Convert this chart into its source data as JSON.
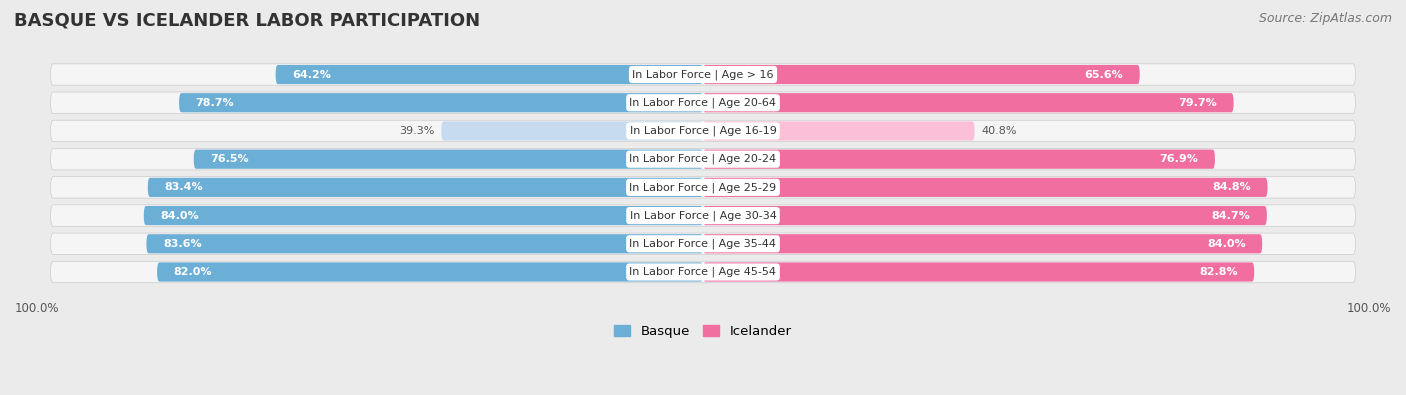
{
  "title": "BASQUE VS ICELANDER LABOR PARTICIPATION",
  "source": "Source: ZipAtlas.com",
  "categories": [
    "In Labor Force | Age > 16",
    "In Labor Force | Age 20-64",
    "In Labor Force | Age 16-19",
    "In Labor Force | Age 20-24",
    "In Labor Force | Age 25-29",
    "In Labor Force | Age 30-34",
    "In Labor Force | Age 35-44",
    "In Labor Force | Age 45-54"
  ],
  "basque_values": [
    64.2,
    78.7,
    39.3,
    76.5,
    83.4,
    84.0,
    83.6,
    82.0
  ],
  "icelander_values": [
    65.6,
    79.7,
    40.8,
    76.9,
    84.8,
    84.7,
    84.0,
    82.8
  ],
  "basque_color": "#6BAED6",
  "icelander_color": "#F06EA0",
  "basque_color_light": "#C6DBEF",
  "icelander_color_light": "#FBBFD8",
  "background_color": "#EBEBEB",
  "row_bg_color": "#F5F5F5",
  "title_fontsize": 13,
  "source_fontsize": 9,
  "label_fontsize": 8,
  "value_fontsize": 8,
  "max_value": 100.0,
  "legend_labels": [
    "Basque",
    "Icelander"
  ]
}
